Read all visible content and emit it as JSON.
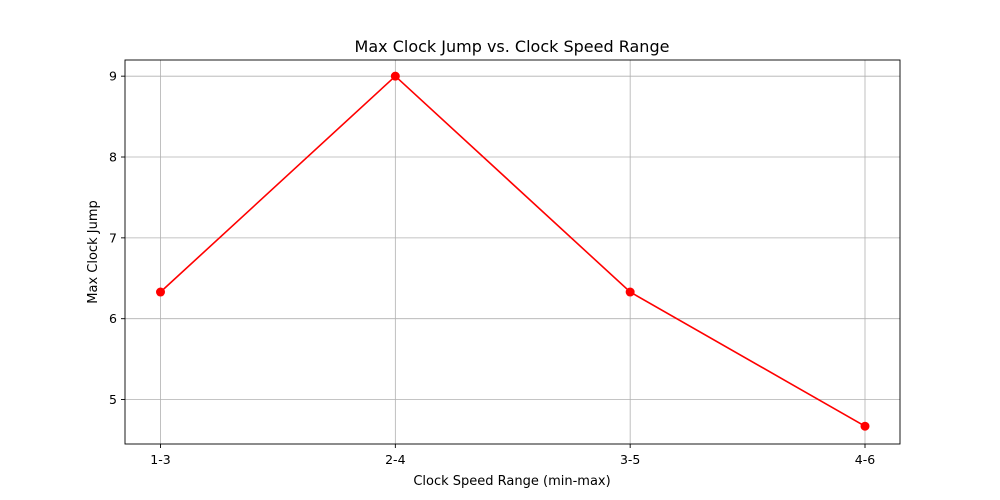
{
  "chart_data": {
    "type": "line",
    "title": "Max Clock Jump vs. Clock Speed Range",
    "xlabel": "Clock Speed Range (min-max)",
    "ylabel": "Max Clock Jump",
    "categories": [
      "1-3",
      "2-4",
      "3-5",
      "4-6"
    ],
    "series": [
      {
        "values": [
          6.33,
          9.0,
          6.33,
          4.67
        ],
        "color": "#ff0000",
        "marker": "circle"
      }
    ],
    "ylim": [
      4.45,
      9.2
    ],
    "yticks": [
      5,
      6,
      7,
      8,
      9
    ],
    "grid": true
  }
}
